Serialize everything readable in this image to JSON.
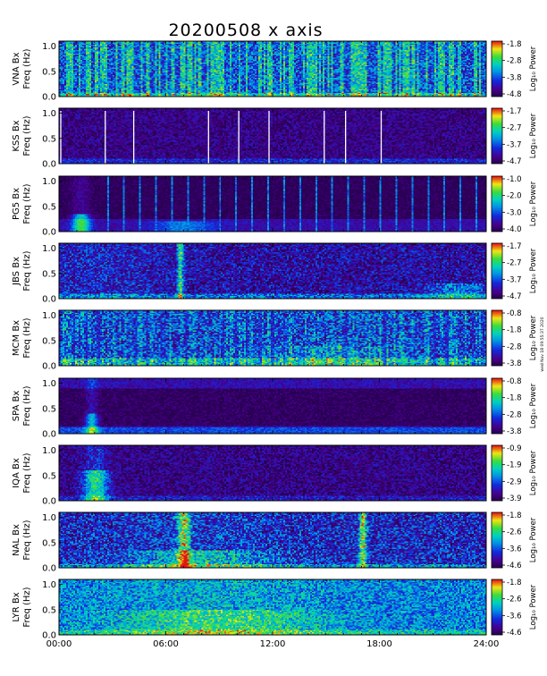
{
  "chart_data": {
    "type": "heatmap",
    "title": "20200508 x axis",
    "x_tick_labels": [
      "00:00",
      "06:00",
      "12:00",
      "18:00",
      "24:00"
    ],
    "x_range_hours": [
      0,
      24
    ],
    "y_range_hz": [
      0,
      1.1
    ],
    "y_tick_labels": [
      "0.0",
      "0.5",
      "1.0"
    ],
    "colorbar_label": "Log₁₀ Power",
    "side_note": "wed Nov 18 09:55:37 2020",
    "panels": [
      {
        "station": "VNA Bx",
        "freq_label": "Freq (Hz)",
        "cb_ticks": [
          "-1.8",
          "-2.8",
          "-3.8",
          "-4.8"
        ],
        "pattern": "vna"
      },
      {
        "station": "KSS Bx",
        "freq_label": "Freq (Hz)",
        "cb_ticks": [
          "-1.7",
          "-2.7",
          "-3.7",
          "-4.7"
        ],
        "pattern": "kss"
      },
      {
        "station": "PG5 Bx",
        "freq_label": "Freq (Hz)",
        "cb_ticks": [
          "-1.0",
          "-2.0",
          "-3.0",
          "-4.0"
        ],
        "pattern": "pg5"
      },
      {
        "station": "JBS Bx",
        "freq_label": "Freq (Hz)",
        "cb_ticks": [
          "-1.7",
          "-2.7",
          "-3.7",
          "-4.7"
        ],
        "pattern": "jbs"
      },
      {
        "station": "MCM Bx",
        "freq_label": "Freq (Hz)",
        "cb_ticks": [
          "-0.8",
          "-1.8",
          "-2.8",
          "-3.8"
        ],
        "pattern": "mcm"
      },
      {
        "station": "SPA Bx",
        "freq_label": "Freq (Hz)",
        "cb_ticks": [
          "-0.8",
          "-1.8",
          "-2.8",
          "-3.8"
        ],
        "pattern": "spa"
      },
      {
        "station": "IQA Bx",
        "freq_label": "Freq (Hz)",
        "cb_ticks": [
          "-0.9",
          "-1.9",
          "-2.9",
          "-3.9"
        ],
        "pattern": "iqa"
      },
      {
        "station": "NAL Bx",
        "freq_label": "Freq (Hz)",
        "cb_ticks": [
          "-1.8",
          "-2.6",
          "-3.6",
          "-4.6"
        ],
        "pattern": "nal"
      },
      {
        "station": "LYR Bx",
        "freq_label": "Freq (Hz)",
        "cb_ticks": [
          "-1.8",
          "-2.6",
          "-3.6",
          "-4.6"
        ],
        "pattern": "lyr"
      }
    ]
  }
}
